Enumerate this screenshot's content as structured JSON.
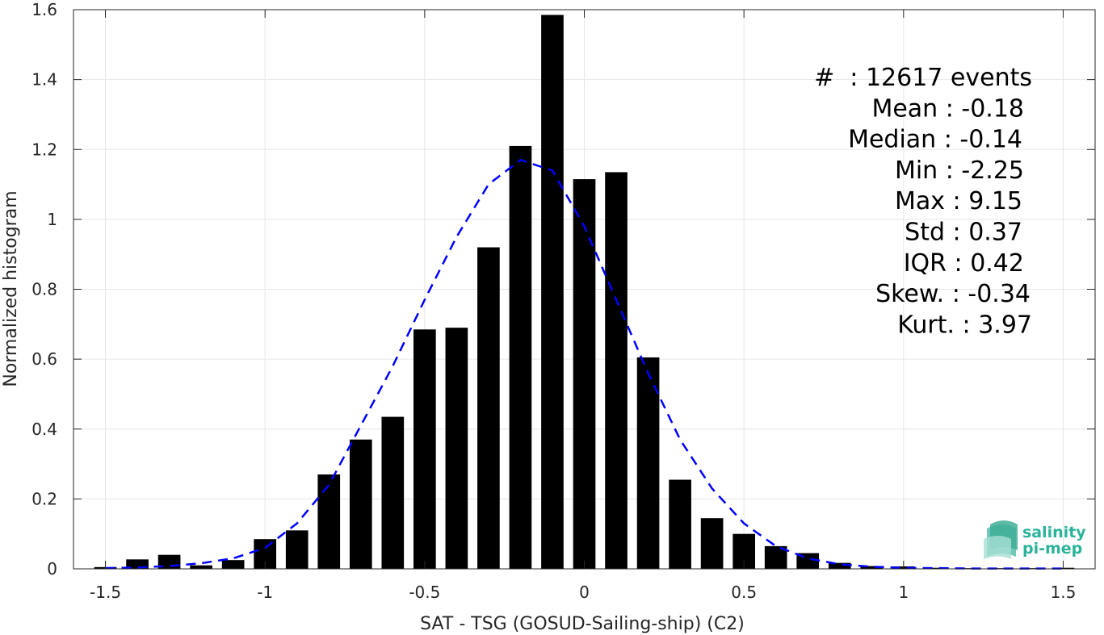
{
  "chart_data": {
    "type": "bar",
    "title": "",
    "xlabel": "SAT - TSG (GOSUD-Sailing-ship) (C2)",
    "ylabel": "Normalized histogram",
    "xlim": [
      -1.6,
      1.6
    ],
    "ylim": [
      0,
      1.6
    ],
    "xticks": [
      -1.5,
      -1,
      -0.5,
      0,
      0.5,
      1,
      1.5
    ],
    "xtick_labels": [
      "-1.5",
      "-1",
      "-0.5",
      "0",
      "0.5",
      "1",
      "1.5"
    ],
    "yticks": [
      0,
      0.2,
      0.4,
      0.6,
      0.8,
      1,
      1.2,
      1.4,
      1.6
    ],
    "ytick_labels": [
      "0",
      "0.2",
      "0.4",
      "0.6",
      "0.8",
      "1",
      "1.2",
      "1.4",
      "1.6"
    ],
    "grid": true,
    "bar_color": "#000000",
    "bins": {
      "centers": [
        -1.5,
        -1.4,
        -1.3,
        -1.2,
        -1.1,
        -1.0,
        -0.9,
        -0.8,
        -0.7,
        -0.6,
        -0.5,
        -0.4,
        -0.3,
        -0.2,
        -0.1,
        0.0,
        0.1,
        0.2,
        0.3,
        0.4,
        0.5,
        0.6,
        0.7,
        0.8,
        0.9,
        1.0,
        1.1,
        1.2,
        1.3,
        1.4,
        1.5
      ],
      "values": [
        0.005,
        0.027,
        0.04,
        0.01,
        0.025,
        0.085,
        0.11,
        0.27,
        0.37,
        0.435,
        0.685,
        0.69,
        0.92,
        1.21,
        1.585,
        1.115,
        1.135,
        0.605,
        0.255,
        0.145,
        0.1,
        0.065,
        0.045,
        0.017,
        0.008,
        0.007,
        0.003,
        0.002,
        0.002,
        0.002,
        0.003
      ],
      "width": 0.07
    },
    "fit_curve": {
      "color": "#0000ff",
      "style": "dashed",
      "x": [
        -1.5,
        -1.4,
        -1.3,
        -1.2,
        -1.1,
        -1.0,
        -0.9,
        -0.8,
        -0.7,
        -0.6,
        -0.5,
        -0.4,
        -0.3,
        -0.2,
        -0.1,
        0.0,
        0.1,
        0.2,
        0.3,
        0.4,
        0.5,
        0.6,
        0.7,
        0.8,
        0.9,
        1.0,
        1.1,
        1.2,
        1.3,
        1.4,
        1.5
      ],
      "y": [
        0.002,
        0.004,
        0.008,
        0.016,
        0.03,
        0.06,
        0.13,
        0.24,
        0.41,
        0.58,
        0.77,
        0.95,
        1.1,
        1.17,
        1.14,
        0.98,
        0.77,
        0.56,
        0.37,
        0.23,
        0.13,
        0.065,
        0.03,
        0.013,
        0.006,
        0.003,
        0.002,
        0.001,
        0.001,
        0.001,
        0.001
      ]
    }
  },
  "stats": {
    "lines": [
      "#  : 12617 events",
      "Mean : -0.18",
      "Median : -0.14",
      "Min : -2.25",
      "Max : 9.15",
      "Std : 0.37",
      "IQR : 0.42",
      "Skew. : -0.34",
      "Kurt. : 3.97"
    ]
  },
  "logo": {
    "line1": "salinity",
    "line2": "pi-mep",
    "color": "#2bb39a"
  }
}
